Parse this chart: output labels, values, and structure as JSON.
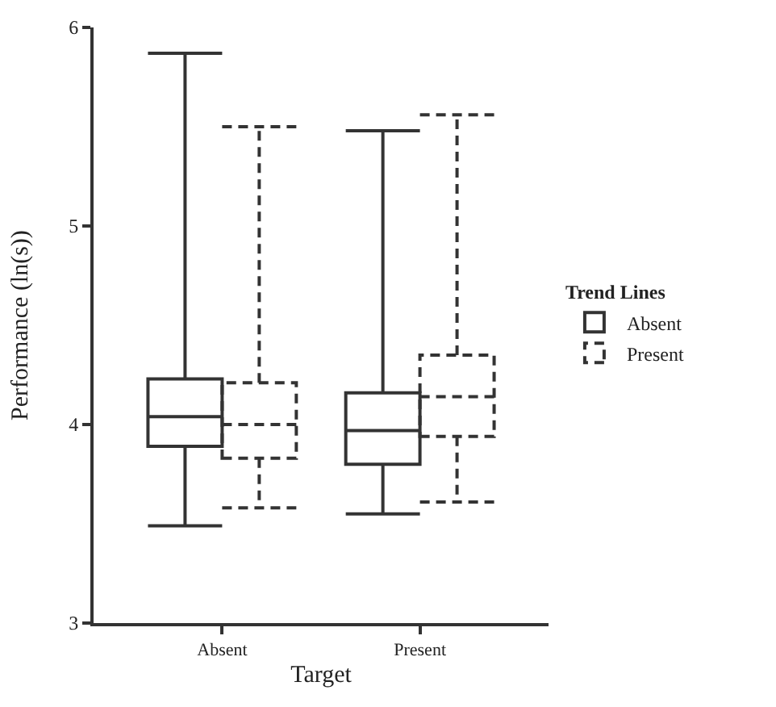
{
  "chart_data": {
    "type": "box",
    "xlabel": "Target",
    "ylabel": "Performance (ln(s))",
    "legend_title": "Trend Lines",
    "legend": "right",
    "grid": false,
    "categories": [
      "Absent",
      "Present"
    ],
    "ylim": [
      3,
      6
    ],
    "yticks": [
      3,
      4,
      5,
      6
    ],
    "series": [
      {
        "name": "Absent",
        "color": "#333333",
        "line_style": "solid",
        "boxes": [
          {
            "low": 3.49,
            "q1": 3.89,
            "median": 4.04,
            "q3": 4.23,
            "high": 5.87
          },
          {
            "low": 3.55,
            "q1": 3.8,
            "median": 3.97,
            "q3": 4.16,
            "high": 5.48
          }
        ]
      },
      {
        "name": "Present",
        "color": "#333333",
        "line_style": "dashed",
        "boxes": [
          {
            "low": 3.58,
            "q1": 3.83,
            "median": 4.0,
            "q3": 4.21,
            "high": 5.5
          },
          {
            "low": 3.61,
            "q1": 3.94,
            "median": 4.14,
            "q3": 4.35,
            "high": 5.56
          }
        ]
      }
    ]
  }
}
